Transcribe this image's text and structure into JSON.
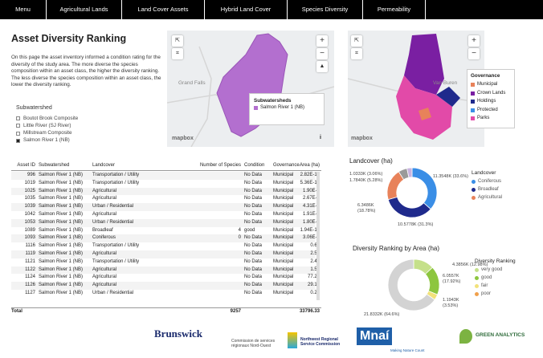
{
  "nav": [
    "Menu",
    "Agricultural Lands",
    "Land Cover Assets",
    "Hybrid Land Cover",
    "Species Diversity",
    "Permeability"
  ],
  "panel": {
    "title": "Asset Diversity Ranking",
    "description": "On this page the asset inventory informed a condition rating for the diversity of the study area. The more diverse the species composition within an asset class, the higher the diversity ranking. The less diverse the species composition within an asset class, the lower the diversity ranking.",
    "filter_label": "Subwatershed",
    "options": [
      "Boutot Brook Composite",
      "Little River (SJ River)",
      "Millstream Composite",
      "Salmon River 1 (NB)"
    ],
    "selected": 3
  },
  "map1": {
    "place": "Grand Falls",
    "legend_title": "Subwatersheds",
    "legend_item": "Salmon River 1 (NB)",
    "legend_color": "#b36fcf",
    "attribution": "mapbox"
  },
  "map2": {
    "place": "Van Buren",
    "legend_title": "Governance",
    "attribution": "mapbox",
    "legend": [
      {
        "name": "Municipal",
        "color": "#e8825a"
      },
      {
        "name": "Crown Lands",
        "color": "#7a1fa2"
      },
      {
        "name": "Holdings",
        "color": "#1f2a8c"
      },
      {
        "name": "Protected",
        "color": "#3a8ee6"
      },
      {
        "name": "Parks",
        "color": "#e24aa8"
      }
    ]
  },
  "table": {
    "columns": [
      "Asset ID",
      "Subwatershed",
      "Landcover",
      "Number of Species",
      "Condition",
      "Governance",
      "Area (ha)"
    ],
    "rows": [
      [
        "996",
        "Salmon River 1 (NB)",
        "Transportation / Utility",
        null,
        "No Data",
        "Municipal",
        "2.82E-10"
      ],
      [
        "1019",
        "Salmon River 1 (NB)",
        "Transportation / Utility",
        null,
        "No Data",
        "Municipal",
        "5.36E-10"
      ],
      [
        "1025",
        "Salmon River 1 (NB)",
        "Agricultural",
        null,
        "No Data",
        "Municipal",
        "1.90E-8"
      ],
      [
        "1035",
        "Salmon River 1 (NB)",
        "Agricultural",
        null,
        "No Data",
        "Municipal",
        "2.67E-9"
      ],
      [
        "1039",
        "Salmon River 1 (NB)",
        "Urban / Residential",
        null,
        "No Data",
        "Municipal",
        "4.31E-9"
      ],
      [
        "1042",
        "Salmon River 1 (NB)",
        "Agricultural",
        null,
        "No Data",
        "Municipal",
        "1.91E-9"
      ],
      [
        "1053",
        "Salmon River 1 (NB)",
        "Urban / Residential",
        null,
        "No Data",
        "Municipal",
        "1.80E-9"
      ],
      [
        "1089",
        "Salmon River 1 (NB)",
        "Broadleaf",
        "4",
        "good",
        "Municipal",
        "1.94E-10"
      ],
      [
        "1093",
        "Salmon River 1 (NB)",
        "Coniferous",
        "0",
        "No Data",
        "Municipal",
        "3.06E-9"
      ],
      [
        "1116",
        "Salmon River 1 (NB)",
        "Transportation / Utility",
        null,
        "No Data",
        "Municipal",
        "0.66"
      ],
      [
        "1119",
        "Salmon River 1 (NB)",
        "Agricultural",
        null,
        "No Data",
        "Municipal",
        "2.59"
      ],
      [
        "1121",
        "Salmon River 1 (NB)",
        "Transportation / Utility",
        null,
        "No Data",
        "Municipal",
        "2.43"
      ],
      [
        "1122",
        "Salmon River 1 (NB)",
        "Agricultural",
        null,
        "No Data",
        "Municipal",
        "1.57"
      ],
      [
        "1124",
        "Salmon River 1 (NB)",
        "Agricultural",
        null,
        "No Data",
        "Municipal",
        "77.29"
      ],
      [
        "1126",
        "Salmon River 1 (NB)",
        "Agricultural",
        null,
        "No Data",
        "Municipal",
        "29.13"
      ],
      [
        "1127",
        "Salmon River 1 (NB)",
        "Urban / Residential",
        null,
        "No Data",
        "Municipal",
        "0.25"
      ]
    ],
    "total": [
      "Total",
      null,
      null,
      "9257",
      null,
      null,
      "33796.33"
    ]
  },
  "landcover_chart": {
    "title": "Landcover (ha)",
    "legend_title": "Landcover",
    "legend": [
      {
        "name": "Coniferous",
        "color": "#3a8ee6"
      },
      {
        "name": "Broadleaf",
        "color": "#1f2a8c"
      },
      {
        "name": "Agricultural",
        "color": "#e8825a"
      }
    ],
    "segments": [
      {
        "value": 11354.8,
        "label": "11.3548K (33.6%)",
        "color": "#3a8ee6"
      },
      {
        "value": 10577.8,
        "label": "10.5778K (31.3%)",
        "color": "#1f2a8c"
      },
      {
        "value": 6348.6,
        "label": "6.3486K (18.78%)",
        "color": "#e8825a"
      },
      {
        "value": 1784.0,
        "label": "1.7840K (5.28%)",
        "color": "#9a9a9a"
      },
      {
        "value": 1033.3,
        "label": "1.0333K (3.06%)",
        "color": "#c9b3e0"
      }
    ]
  },
  "diversity_chart": {
    "title": "Diversity Ranking by Area (ha)",
    "legend_title": "Diversity Ranking",
    "legend": [
      {
        "name": "very good",
        "color": "#c5e08a"
      },
      {
        "name": "good",
        "color": "#8dc63f"
      },
      {
        "name": "fair",
        "color": "#f2e27a"
      },
      {
        "name": "poor",
        "color": "#f0a04b"
      }
    ],
    "segments": [
      {
        "value": 4385.6,
        "label": "4.3856K (12.98%)",
        "color": "#c5e08a"
      },
      {
        "value": 6055.7,
        "label": "6.0557K (17.92%)",
        "color": "#8dc63f"
      },
      {
        "value": 1194.3,
        "label": "1.1943K (3.53%)",
        "color": "#f2e27a"
      },
      {
        "value": 21833.2,
        "label": "21.8332K (64.6%)",
        "color": "#d3d3d3"
      }
    ]
  },
  "footer": {
    "logos": [
      "Brunswick",
      "Commission de services régionaux Nord-Ouest",
      "Northwest Regional Service Commission",
      "Mnaí",
      "Making Nature Count",
      "GREEN ANALYTICS"
    ]
  }
}
